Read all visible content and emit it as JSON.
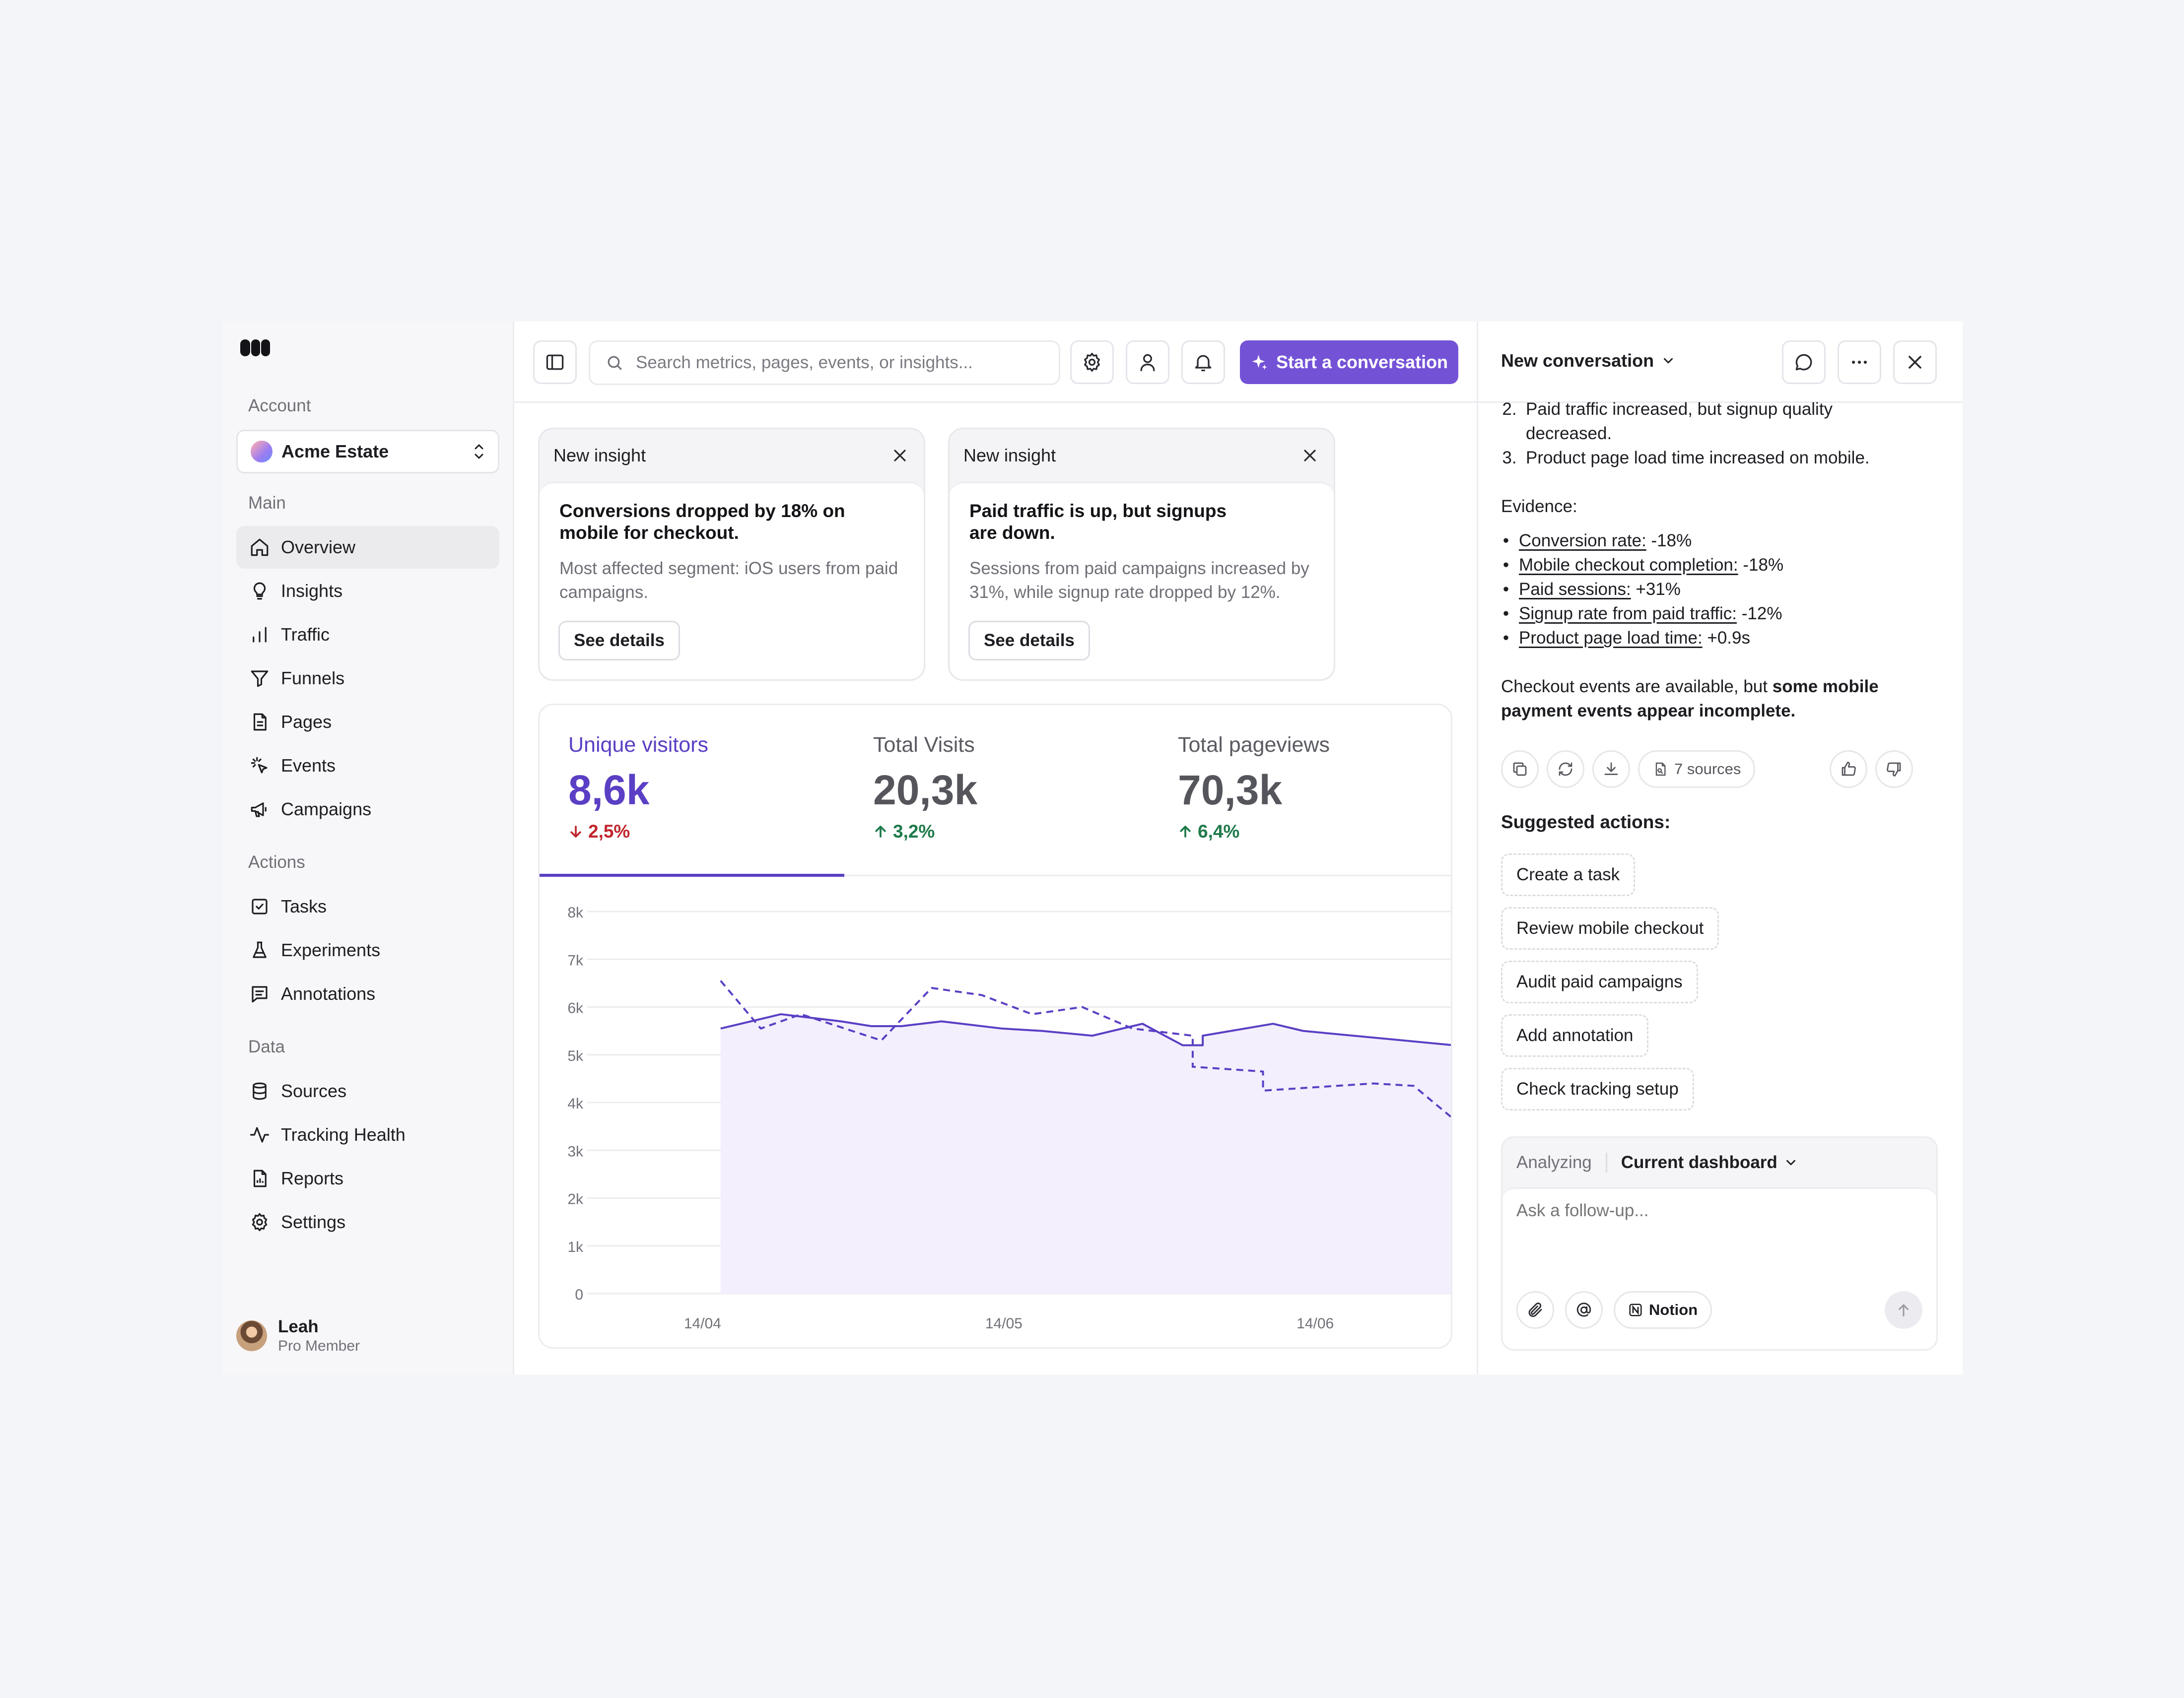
{
  "sidebar": {
    "account_label": "Account",
    "account_name": "Acme Estate",
    "main_label": "Main",
    "main_items": [
      "Overview",
      "Insights",
      "Traffic",
      "Funnels",
      "Pages",
      "Events",
      "Campaigns"
    ],
    "actions_label": "Actions",
    "action_items": [
      "Tasks",
      "Experiments",
      "Annotations"
    ],
    "data_label": "Data",
    "data_items": [
      "Sources",
      "Tracking Health",
      "Reports",
      "Settings"
    ],
    "active_item": "Overview",
    "user": {
      "name": "Leah",
      "role": "Pro Member"
    }
  },
  "topbar": {
    "search_placeholder": "Search metrics, pages, events, or insights...",
    "cta_label": "Start a conversation"
  },
  "insights": [
    {
      "header": "New insight",
      "title": "Conversions dropped by 18% on mobile for checkout.",
      "text": "Most affected segment: iOS users from paid campaigns.",
      "button": "See details"
    },
    {
      "header": "New insight",
      "title": "Paid traffic is up, but signups are down.",
      "text": "Sessions from paid campaigns increased by 31%, while signup rate dropped by 12%.",
      "button": "See details"
    }
  ],
  "metrics": [
    {
      "label": "Unique visitors",
      "value": "8,6k",
      "change": "2,5%",
      "direction": "down"
    },
    {
      "label": "Total Visits",
      "value": "20,3k",
      "change": "3,2%",
      "direction": "up"
    },
    {
      "label": "Total pageviews",
      "value": "70,3k",
      "change": "6,4%",
      "direction": "up"
    }
  ],
  "colors": {
    "accent": "#5b3fc4",
    "cta": "#7452d6",
    "down": "#c0262d",
    "up": "#1e7a4a",
    "area_fill": "#f3effd"
  },
  "chart_data": {
    "type": "area",
    "ylim": [
      0,
      8000
    ],
    "yticks": [
      "0",
      "1k",
      "2k",
      "3k",
      "4k",
      "5k",
      "6k",
      "7k",
      "8k"
    ],
    "xticks": [
      "14/04",
      "14/05",
      "14/06"
    ],
    "series": [
      {
        "style": "solid",
        "x": [
          "2024-04-16",
          "2024-04-22",
          "2024-04-28",
          "2024-05-01",
          "2024-05-04",
          "2024-05-08",
          "2024-05-14",
          "2024-05-18",
          "2024-05-23",
          "2024-05-28",
          "2024-06-01",
          "2024-06-03",
          "2024-06-03",
          "2024-06-10",
          "2024-06-13",
          "2024-06-28"
        ],
        "values": [
          5550,
          5850,
          5700,
          5600,
          5600,
          5700,
          5550,
          5500,
          5400,
          5650,
          5200,
          5200,
          5400,
          5650,
          5500,
          5200
        ]
      },
      {
        "style": "dashed",
        "x": [
          "2024-04-16",
          "2024-04-20",
          "2024-04-24",
          "2024-05-02",
          "2024-05-07",
          "2024-05-12",
          "2024-05-17",
          "2024-05-22",
          "2024-05-27",
          "2024-06-02",
          "2024-06-02",
          "2024-06-09",
          "2024-06-09",
          "2024-06-20",
          "2024-06-24",
          "2024-06-28"
        ],
        "values": [
          6550,
          5550,
          5850,
          5300,
          6400,
          6250,
          5850,
          6000,
          5550,
          5400,
          4750,
          4650,
          4250,
          4400,
          4350,
          3650
        ]
      }
    ]
  },
  "conversation": {
    "title": "New conversation",
    "list_items": [
      {
        "num": "2.",
        "text": "Paid traffic increased, but signup quality decreased."
      },
      {
        "num": "3.",
        "text": "Product page load time increased on mobile."
      }
    ],
    "evidence_label": "Evidence:",
    "evidence": [
      {
        "label": "Conversion rate:",
        "value": "-18%"
      },
      {
        "label": "Mobile checkout completion:",
        "value": "-18%"
      },
      {
        "label": "Paid sessions:",
        "value": "+31%"
      },
      {
        "label": "Signup rate from paid traffic:",
        "value": "-12%"
      },
      {
        "label": "Product page load time:",
        "value": "+0.9s"
      }
    ],
    "summary_prefix": "Checkout events are available, but",
    "summary_bold": "some mobile payment events appear incomplete.",
    "sources_label": "7 sources",
    "suggested_label": "Suggested actions:",
    "suggested_actions": [
      "Create a task",
      "Review mobile checkout",
      "Audit paid campaigns",
      "Add annotation",
      "Check tracking setup"
    ],
    "analyzing_label": "Analyzing",
    "analyzing_value": "Current dashboard",
    "input_placeholder": "Ask a follow-up...",
    "notion_label": "Notion"
  }
}
